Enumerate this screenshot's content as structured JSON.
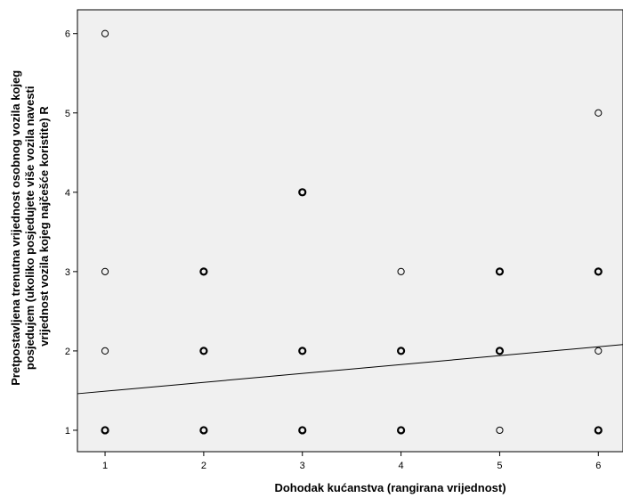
{
  "chart_data": {
    "type": "scatter",
    "xlabel": "Dohodak kućanstva (rangirana vrijednost)",
    "ylabel_lines": [
      "Pretpostavljena trenutna vrijednost osobnog vozila kojeg",
      "posjedujem (ukoliko posjedujete više vozila navesti",
      "vrijednost vozila kojeg najčešće koristite) R"
    ],
    "xlim": [
      0.72,
      6.25
    ],
    "ylim": [
      0.73,
      6.3
    ],
    "x_ticks": [
      1,
      2,
      3,
      4,
      5,
      6
    ],
    "y_ticks": [
      1,
      2,
      3,
      4,
      5,
      6
    ],
    "grid": false,
    "plot_background": "#f0f0f0",
    "marker_color": "#000000",
    "points": [
      {
        "x": 1,
        "y": 6,
        "bold": false
      },
      {
        "x": 1,
        "y": 3,
        "bold": false
      },
      {
        "x": 1,
        "y": 2,
        "bold": false
      },
      {
        "x": 1,
        "y": 1,
        "bold": true
      },
      {
        "x": 2,
        "y": 3,
        "bold": true
      },
      {
        "x": 2,
        "y": 2,
        "bold": true
      },
      {
        "x": 2,
        "y": 1,
        "bold": true
      },
      {
        "x": 3,
        "y": 4,
        "bold": true
      },
      {
        "x": 3,
        "y": 2,
        "bold": true
      },
      {
        "x": 3,
        "y": 1,
        "bold": true
      },
      {
        "x": 4,
        "y": 3,
        "bold": false
      },
      {
        "x": 4,
        "y": 2,
        "bold": true
      },
      {
        "x": 4,
        "y": 1,
        "bold": true
      },
      {
        "x": 5,
        "y": 3,
        "bold": true
      },
      {
        "x": 5,
        "y": 2,
        "bold": true
      },
      {
        "x": 5,
        "y": 1,
        "bold": false
      },
      {
        "x": 6,
        "y": 5,
        "bold": false
      },
      {
        "x": 6,
        "y": 3,
        "bold": true
      },
      {
        "x": 6,
        "y": 2,
        "bold": false
      },
      {
        "x": 6,
        "y": 1,
        "bold": true
      }
    ],
    "fit_line": {
      "intercept": 1.38,
      "slope": 0.112
    }
  }
}
